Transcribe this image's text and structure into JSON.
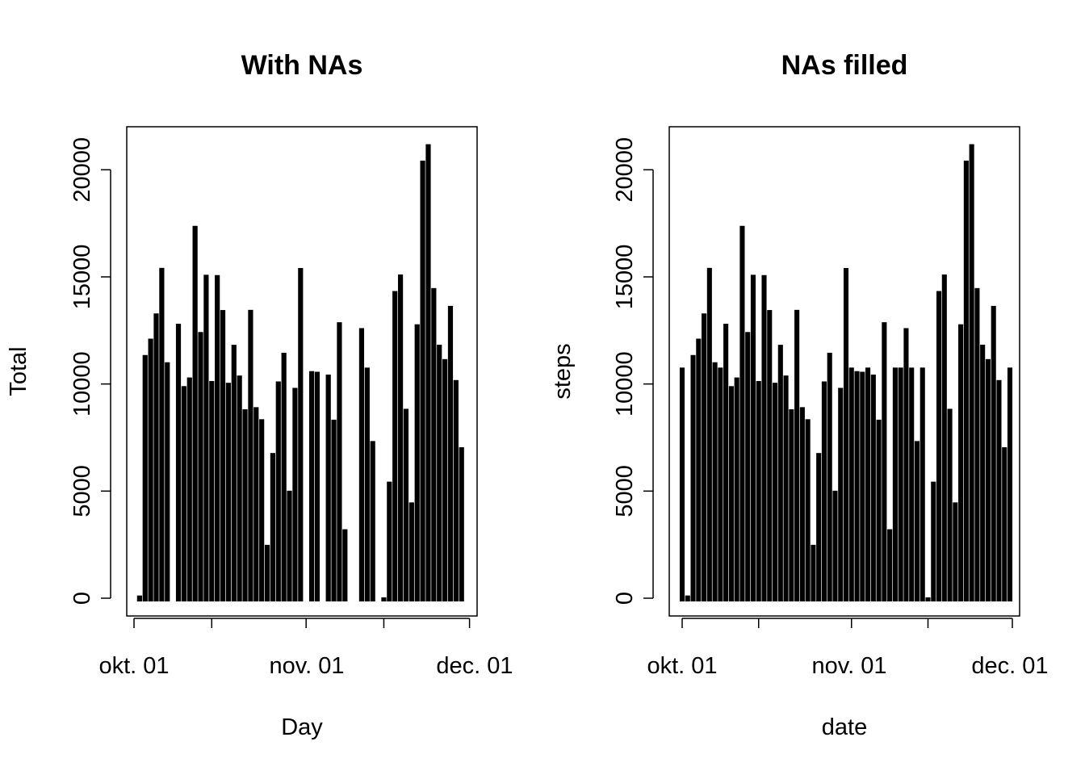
{
  "chart_data": [
    {
      "type": "bar",
      "title": "With NAs",
      "xlabel": "Day",
      "ylabel": "Total",
      "x_ticks": [
        "okt. 01",
        "nov. 01",
        "dec. 01"
      ],
      "y_ticks": [
        0,
        5000,
        10000,
        15000,
        20000
      ],
      "ylim": [
        0,
        22000
      ],
      "x_start": "2012-10-01",
      "values": [
        null,
        126,
        11352,
        12116,
        13294,
        15420,
        11015,
        null,
        12811,
        9900,
        10304,
        17382,
        12426,
        15098,
        10139,
        15084,
        13452,
        10056,
        11829,
        10395,
        8821,
        13460,
        8918,
        8355,
        2492,
        6778,
        10119,
        11458,
        5018,
        9819,
        15414,
        null,
        10600,
        10571,
        null,
        10439,
        8334,
        12883,
        3219,
        null,
        null,
        12608,
        10765,
        7336,
        null,
        41,
        5441,
        14339,
        15110,
        8841,
        4472,
        12787,
        20427,
        21194,
        14478,
        11834,
        11162,
        13646,
        10183,
        7047,
        null
      ],
      "grid": false,
      "legend": "none"
    },
    {
      "type": "bar",
      "title": "NAs filled",
      "xlabel": "date",
      "ylabel": "steps",
      "x_ticks": [
        "okt. 01",
        "nov. 01",
        "dec. 01"
      ],
      "y_ticks": [
        0,
        5000,
        10000,
        15000,
        20000
      ],
      "ylim": [
        0,
        22000
      ],
      "x_start": "2012-10-01",
      "values": [
        10766,
        126,
        11352,
        12116,
        13294,
        15420,
        11015,
        10766,
        12811,
        9900,
        10304,
        17382,
        12426,
        15098,
        10139,
        15084,
        13452,
        10056,
        11829,
        10395,
        8821,
        13460,
        8918,
        8355,
        2492,
        6778,
        10119,
        11458,
        5018,
        9819,
        15414,
        10766,
        10600,
        10571,
        10766,
        10439,
        8334,
        12883,
        3219,
        10766,
        10766,
        12608,
        10765,
        7336,
        10766,
        41,
        5441,
        14339,
        15110,
        8841,
        4472,
        12787,
        20427,
        21194,
        14478,
        11834,
        11162,
        13646,
        10183,
        7047,
        10766
      ],
      "grid": false,
      "legend": "none"
    }
  ]
}
